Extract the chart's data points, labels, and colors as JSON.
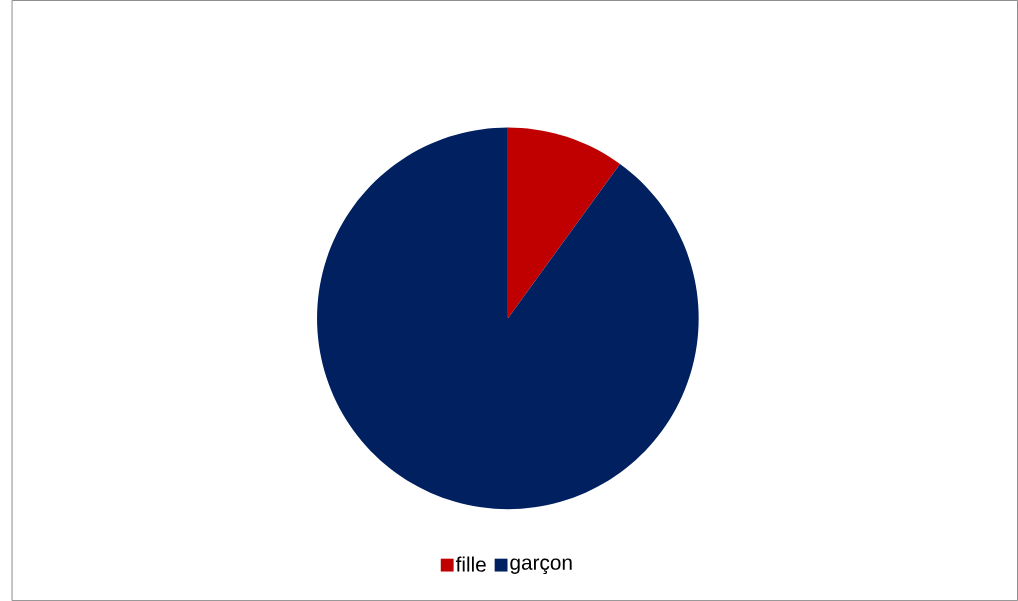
{
  "chart_data": {
    "type": "pie",
    "categories": [
      "fille",
      "garçon"
    ],
    "values": [
      10,
      90
    ],
    "colors": [
      "#c00000",
      "#002060"
    ],
    "legend": "bottom"
  }
}
